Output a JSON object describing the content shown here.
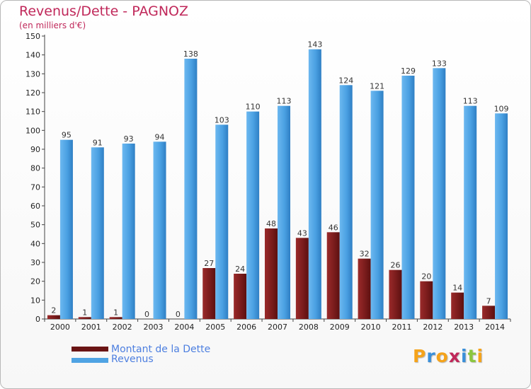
{
  "header": {
    "title": "Revenus/Dette - PAGNOZ",
    "subtitle": "(en milliers d'€)"
  },
  "logo": {
    "text": "Proxiti",
    "letters": [
      {
        "ch": "P",
        "color": "#f5a31a"
      },
      {
        "ch": "r",
        "color": "#3a8fd9"
      },
      {
        "ch": "o",
        "color": "#f5a31a"
      },
      {
        "ch": "x",
        "color": "#c0285a"
      },
      {
        "ch": "i",
        "color": "#3a8fd9"
      },
      {
        "ch": "t",
        "color": "#8cc63f"
      },
      {
        "ch": "i",
        "color": "#f5a31a"
      }
    ]
  },
  "chart_data": {
    "type": "bar",
    "title": "Revenus/Dette - PAGNOZ",
    "ylabel": "(en milliers d'€)",
    "categories": [
      "2000",
      "2001",
      "2002",
      "2003",
      "2004",
      "2005",
      "2006",
      "2007",
      "2008",
      "2009",
      "2010",
      "2011",
      "2012",
      "2013",
      "2014"
    ],
    "series": [
      {
        "name": "Montant de la Dette",
        "color": "#7a1c1c",
        "values": [
          2,
          1,
          1,
          0,
          0,
          27,
          24,
          48,
          43,
          46,
          32,
          26,
          20,
          14,
          7
        ]
      },
      {
        "name": "Revenus",
        "color": "#4fa3e3",
        "values": [
          95,
          91,
          93,
          94,
          138,
          103,
          110,
          113,
          143,
          124,
          121,
          129,
          133,
          113,
          109
        ]
      }
    ],
    "ylim": [
      0,
      150
    ],
    "yticks": [
      0,
      10,
      20,
      30,
      40,
      50,
      60,
      70,
      80,
      90,
      100,
      110,
      120,
      130,
      140,
      150
    ],
    "grid": false,
    "legend_position": "bottom-left"
  }
}
